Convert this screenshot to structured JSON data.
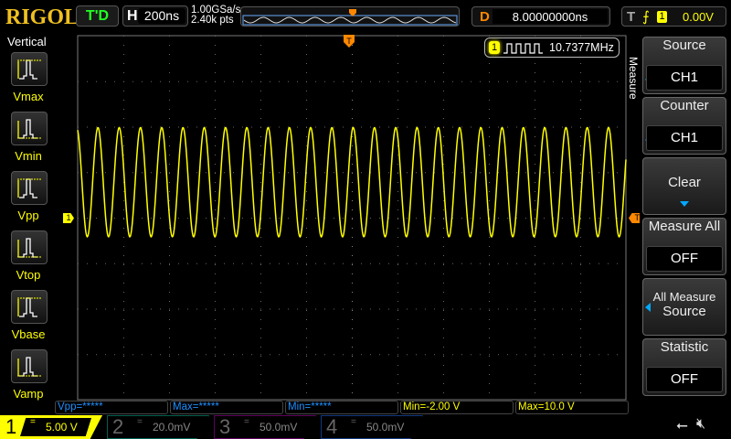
{
  "brand": "RIGOL",
  "top": {
    "trigger_status": "T'D",
    "horizontal_key": "H",
    "timebase": "200ns",
    "sample_rate": "1.00GSa/s",
    "memory_depth": "2.40k pts",
    "delay_key": "D",
    "delay": "8.00000000ns",
    "trigger_key": "T",
    "trigger_source": "1",
    "trigger_level": "0.00V",
    "trigger_edge_icon": "rising-edge-icon"
  },
  "counter": {
    "channel": "1",
    "value": "10.7377MHz",
    "icon": "square-wave-icon"
  },
  "left_menu": {
    "title": "Vertical",
    "items": [
      {
        "label": "Vmax"
      },
      {
        "label": "Vmin"
      },
      {
        "label": "Vpp"
      },
      {
        "label": "Vtop"
      },
      {
        "label": "Vbase"
      },
      {
        "label": "Vamp"
      }
    ]
  },
  "right_menu": {
    "title": "Measure",
    "source": {
      "label": "Source",
      "value": "CH1"
    },
    "counter": {
      "label": "Counter",
      "value": "CH1"
    },
    "clear": {
      "label": "Clear"
    },
    "measure_all": {
      "label": "Measure All",
      "value": "OFF"
    },
    "all_measure_source": {
      "label1": "All Measure",
      "label2": "Source"
    },
    "statistic": {
      "label": "Statistic",
      "value": "OFF"
    }
  },
  "measurements": [
    {
      "text": "Vpp=*****",
      "color": "#1e90ff"
    },
    {
      "text": "Max=*****",
      "color": "#1e90ff"
    },
    {
      "text": "Min=*****",
      "color": "#1e90ff"
    },
    {
      "text": "Min=-2.00 V",
      "color": "#ffff00"
    },
    {
      "text": "Max=10.0 V",
      "color": "#ffff00"
    }
  ],
  "channels": [
    {
      "num": "1",
      "scale": "5.00 V",
      "color": "#ffff00",
      "active": true
    },
    {
      "num": "2",
      "scale": "20.0mV",
      "color": "#00c0a0",
      "active": false
    },
    {
      "num": "3",
      "scale": "50.0mV",
      "color": "#c000c0",
      "active": false
    },
    {
      "num": "4",
      "scale": "50.0mV",
      "color": "#2070ff",
      "active": false
    }
  ],
  "waveform": {
    "frequency_hz": 10737700,
    "volts_per_div": 5,
    "time_per_div_s": 2e-07,
    "vmin": -2.0,
    "vmax": 10.0,
    "color": "#ffff00",
    "h_divisions": 12,
    "v_divisions": 8
  },
  "status_icons": [
    "usb-icon",
    "speaker-muted-icon"
  ]
}
